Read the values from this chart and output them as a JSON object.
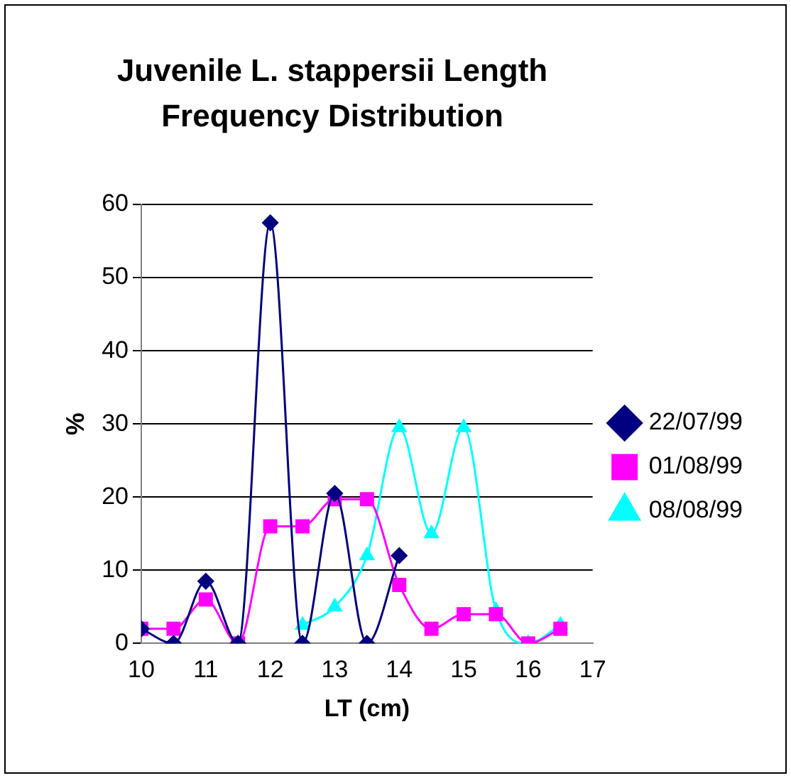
{
  "chart_data": {
    "type": "line",
    "title": "Juvenile L. stappersii Length Frequency Distribution",
    "xlabel": "LT (cm)",
    "ylabel": "%",
    "xlim": [
      10,
      17
    ],
    "xticks": [
      10,
      11,
      12,
      13,
      14,
      15,
      16,
      17
    ],
    "ylim": [
      0,
      60
    ],
    "yticks": [
      0,
      10,
      20,
      30,
      40,
      50,
      60
    ],
    "grid": "y",
    "legend": "right",
    "series": [
      {
        "name": "22/07/99",
        "color": "#000080",
        "marker": "diamond",
        "x": [
          10,
          10.5,
          11,
          11.5,
          12,
          12.5,
          13,
          13.5,
          14
        ],
        "values": [
          2,
          0,
          8.5,
          0,
          57.5,
          0,
          20.5,
          0,
          12
        ]
      },
      {
        "name": "01/08/99",
        "color": "#ff00ff",
        "marker": "square",
        "x": [
          10,
          10.5,
          11,
          11.5,
          12,
          12.5,
          13,
          13.5,
          14,
          14.5,
          15,
          15.5,
          16,
          16.5
        ],
        "values": [
          2,
          2,
          6,
          0,
          16,
          16,
          19.7,
          19.7,
          8,
          2,
          4,
          4,
          0,
          2
        ]
      },
      {
        "name": "08/08/99",
        "color": "#00ffff",
        "marker": "triangle",
        "x": [
          12.5,
          13,
          13.5,
          14,
          14.5,
          15,
          15.5,
          16,
          16.5
        ],
        "values": [
          2.5,
          5,
          12,
          29.5,
          15,
          29.5,
          4.5,
          0,
          2.5
        ]
      }
    ]
  }
}
